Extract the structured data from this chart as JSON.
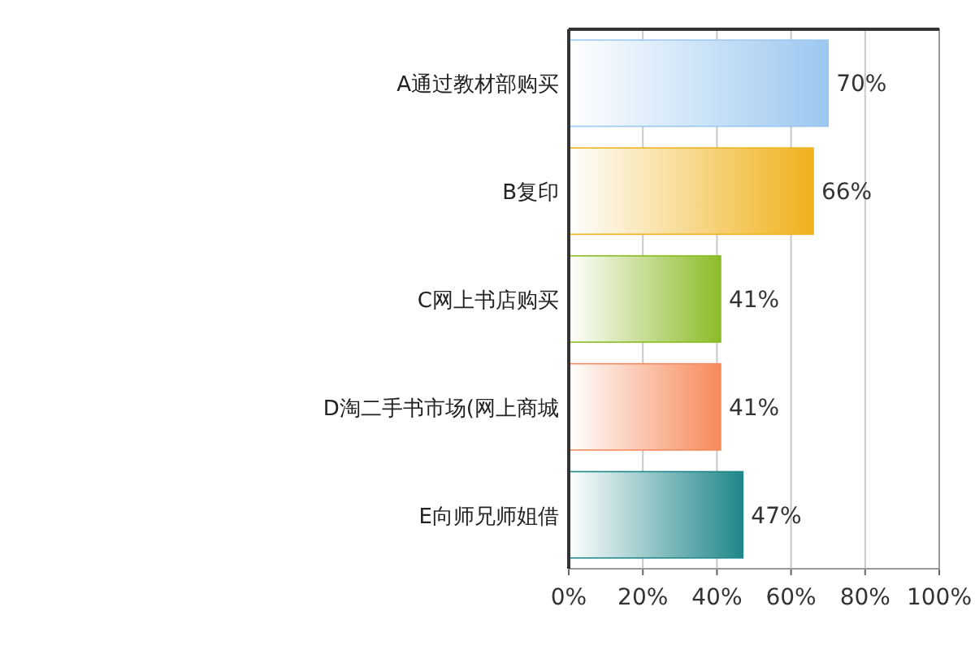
{
  "chart_data": {
    "type": "bar",
    "orientation": "horizontal",
    "categories": [
      "A通过教材部购买",
      "B复印",
      "C网上书店购买",
      "D淘二手书市场(网上商城",
      "E向师兄师姐借"
    ],
    "values": [
      70,
      66,
      41,
      41,
      47
    ],
    "colors": [
      "#9cc8f0",
      "#f0b21c",
      "#8cbc28",
      "#f7895a",
      "#20878a"
    ],
    "value_labels": [
      "70%",
      "66%",
      "41%",
      "41%",
      "47%"
    ],
    "xlim": [
      0,
      100
    ],
    "xticks": [
      {
        "value": 0,
        "label": "0%"
      },
      {
        "value": 20,
        "label": "20%"
      },
      {
        "value": 40,
        "label": "40%"
      },
      {
        "value": 60,
        "label": "60%"
      },
      {
        "value": 80,
        "label": "80%"
      },
      {
        "value": 100,
        "label": "100%"
      }
    ],
    "grid": "x"
  }
}
